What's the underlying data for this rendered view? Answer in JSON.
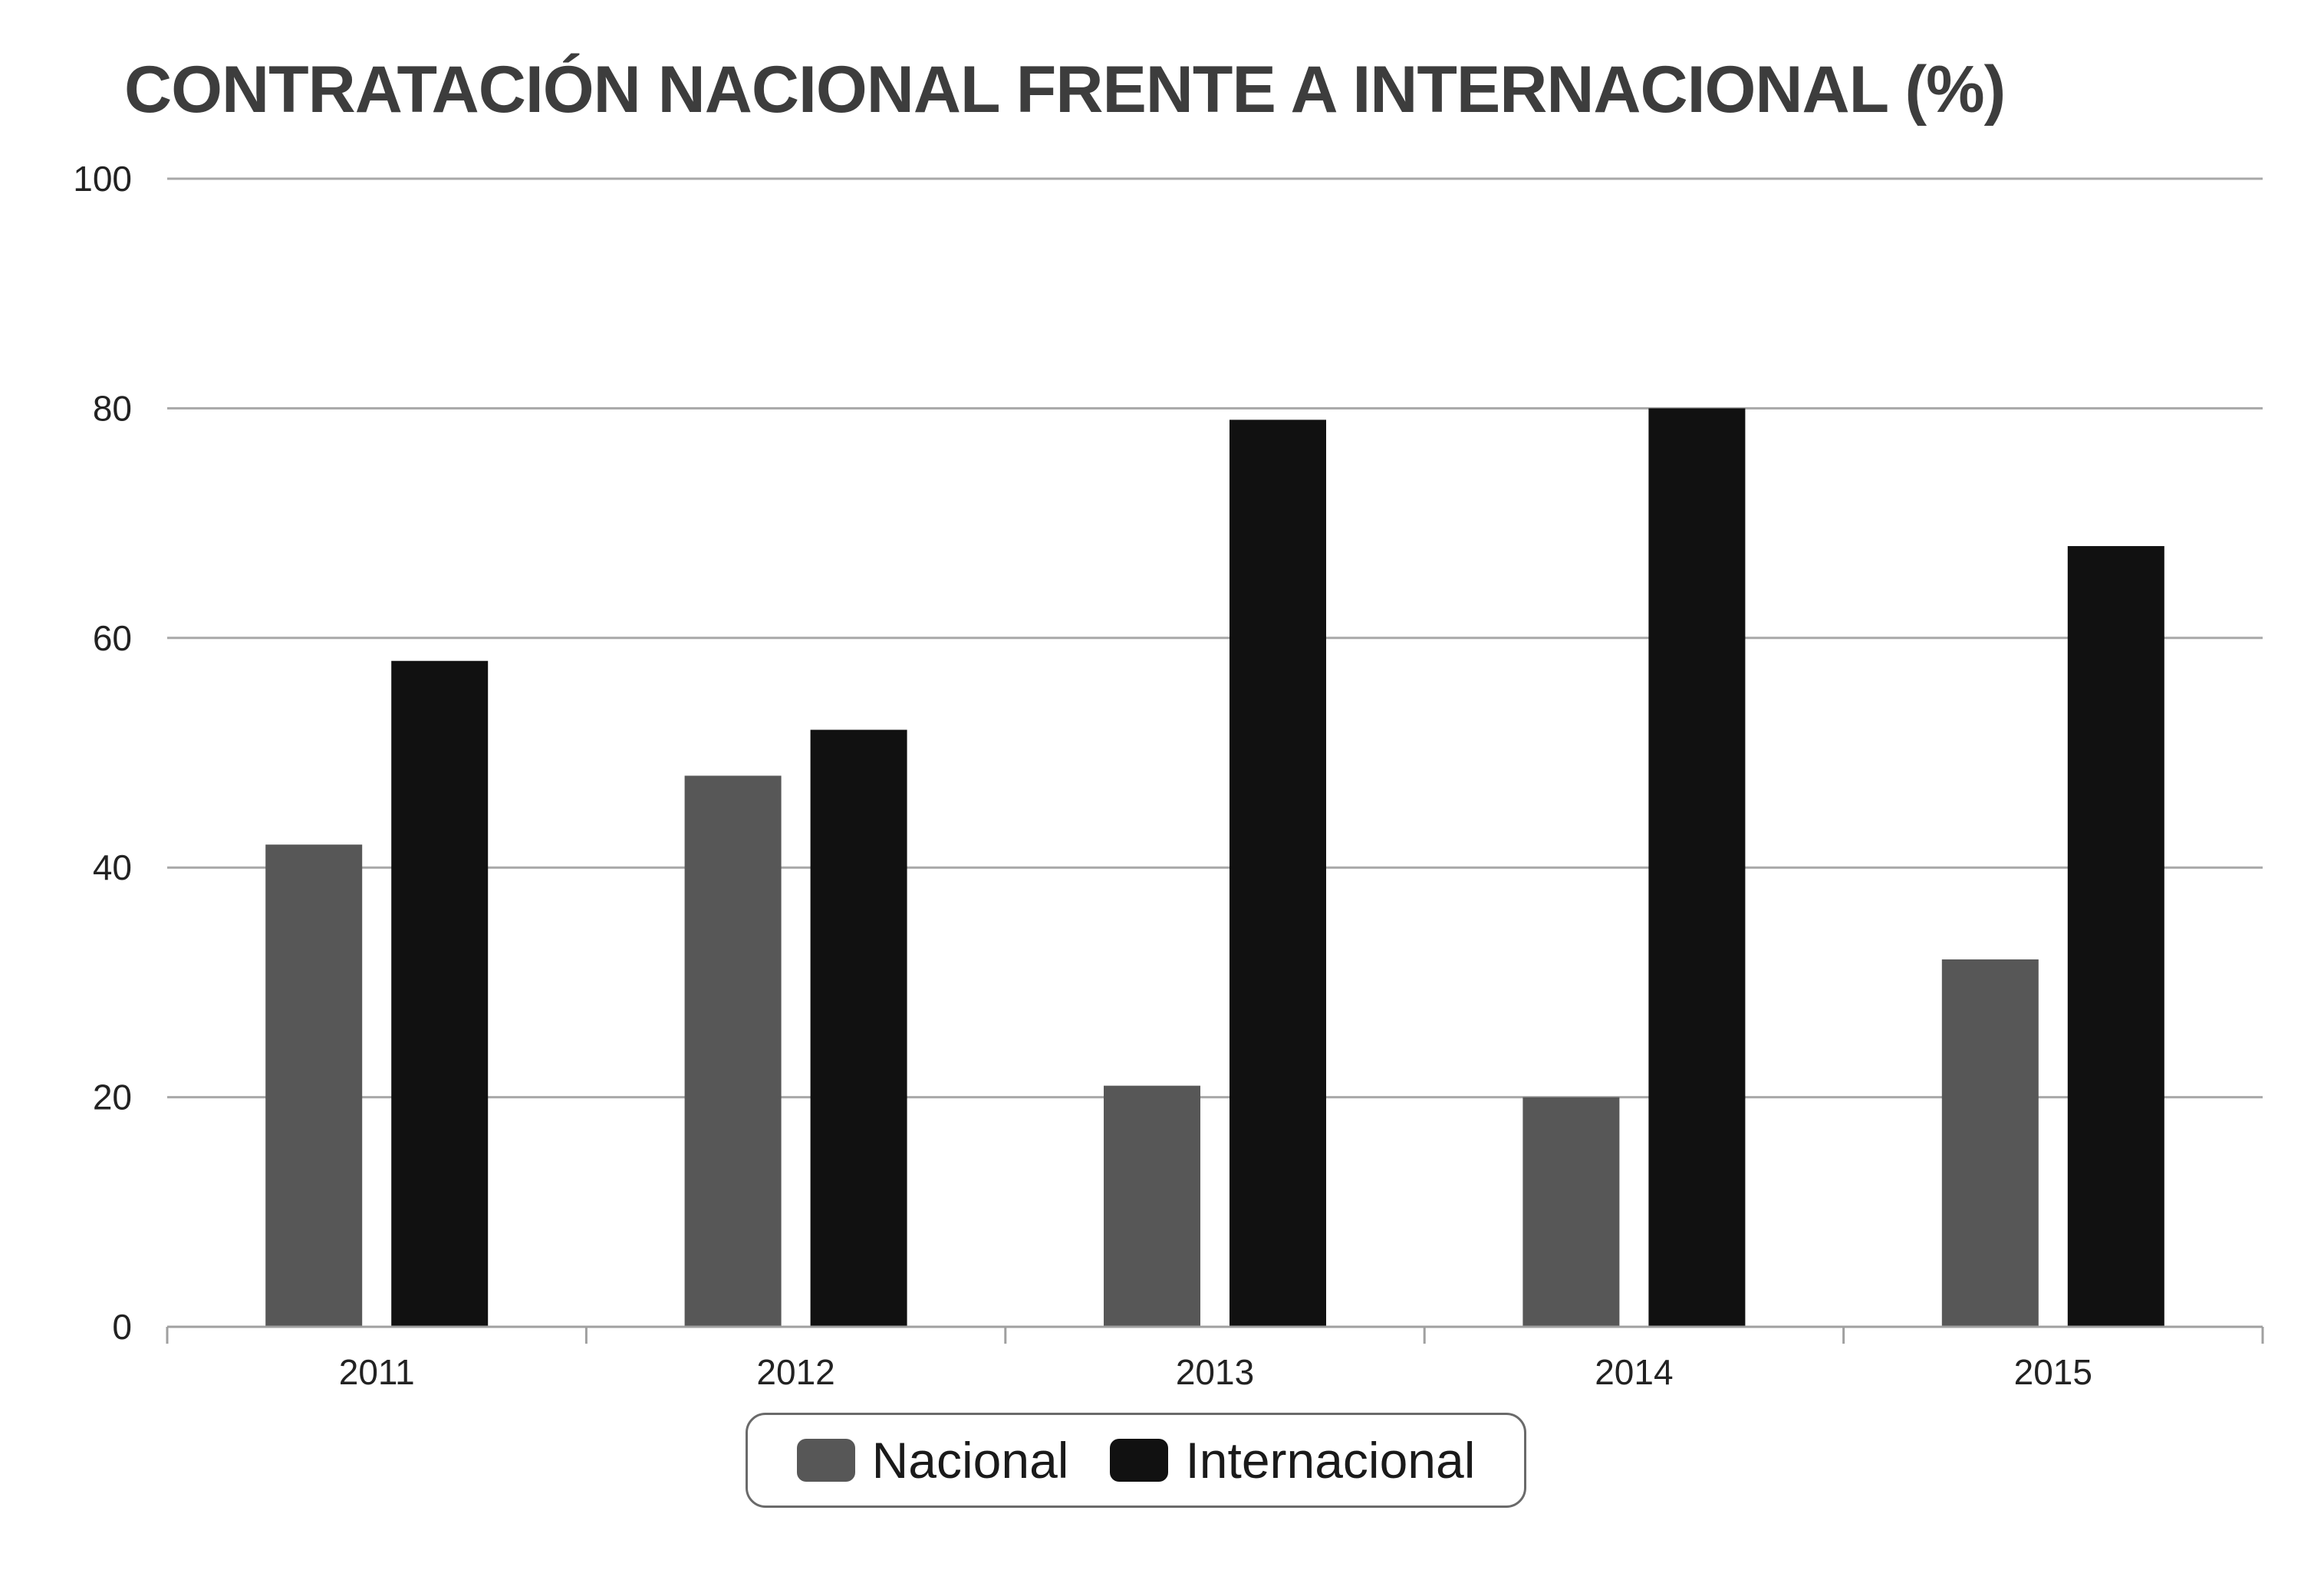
{
  "chart_data": {
    "type": "bar",
    "title": "CONTRATACIÓN NACIONAL FRENTE A INTERNACIONAL (%)",
    "categories": [
      "2011",
      "2012",
      "2013",
      "2014",
      "2015"
    ],
    "series": [
      {
        "name": "Nacional",
        "values": [
          42,
          48,
          21,
          20,
          32
        ],
        "color": "#575757"
      },
      {
        "name": "Internacional",
        "values": [
          58,
          52,
          79,
          80,
          68
        ],
        "color": "#111111"
      }
    ],
    "ylim": [
      0,
      100
    ],
    "yticks": [
      "0",
      "20",
      "40",
      "60",
      "80",
      "100"
    ],
    "grid": true,
    "legend_position": "bottom-center",
    "colors": {
      "gridline": "#a8a8a8",
      "axis": "#a0a0a0"
    }
  }
}
